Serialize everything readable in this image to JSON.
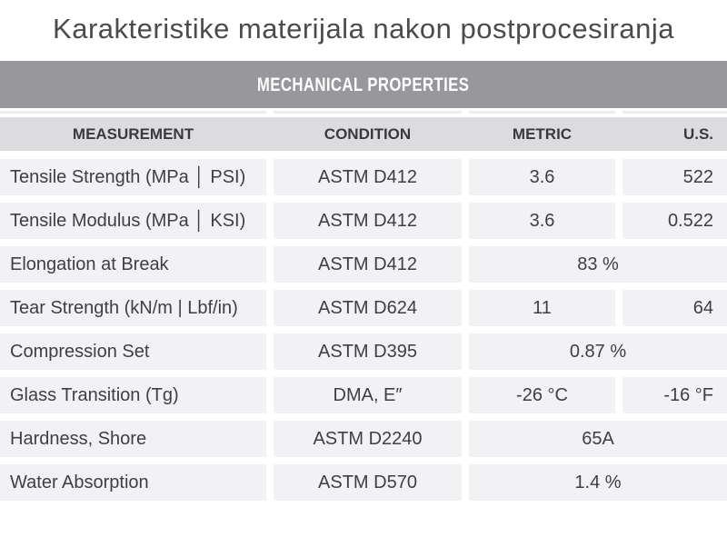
{
  "title": "Karakteristike materijala nakon postprocesiranja",
  "table": {
    "banner": "MECHANICAL PROPERTIES",
    "headers": {
      "measurement": "MEASUREMENT",
      "condition": "CONDITION",
      "metric": "METRIC",
      "us": "U.S."
    },
    "rows": [
      {
        "measurement": "Tensile Strength (MPa │ PSI)",
        "condition": "ASTM D412",
        "metric": "3.6",
        "us": "522"
      },
      {
        "measurement": "Tensile Modulus (MPa │ KSI)",
        "condition": "ASTM D412",
        "metric": "3.6",
        "us": "0.522"
      },
      {
        "measurement": "Elongation at Break",
        "condition": "ASTM D412",
        "value": "83 %"
      },
      {
        "measurement": "Tear Strength (kN/m | Lbf/in)",
        "condition": "ASTM D624",
        "metric": "11",
        "us": "64"
      },
      {
        "measurement": "Compression Set",
        "condition": "ASTM D395",
        "value": "0.87 %"
      },
      {
        "measurement": "Glass Transition (Tg)",
        "condition": "DMA, E″",
        "metric": "-26 °C",
        "us": "-16 °F"
      },
      {
        "measurement": "Hardness, Shore",
        "condition": "ASTM D2240",
        "value": "65A"
      },
      {
        "measurement": "Water Absorption",
        "condition": "ASTM D570",
        "value": "1.4 %"
      }
    ]
  },
  "colors": {
    "banner_bg": "#98979b",
    "banner_text": "#ffffff",
    "header_bg": "#dcdcde",
    "cell_bg": "#f2f2f4",
    "body_text": "#3e3e45",
    "title_text": "#4b4b4d"
  }
}
